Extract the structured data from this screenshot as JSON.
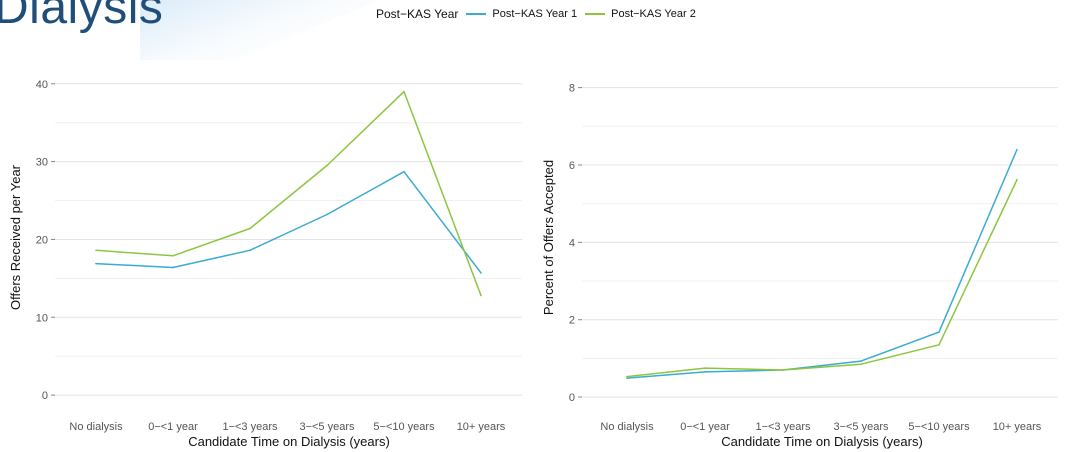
{
  "slide": {
    "title": "Dialysis"
  },
  "legend": {
    "title": "Post−KAS Year",
    "items": [
      {
        "name": "Post−KAS Year 1",
        "color": "#3aabd2"
      },
      {
        "name": "Post−KAS Year 2",
        "color": "#8cc63f"
      }
    ]
  },
  "chart_data": [
    {
      "type": "line",
      "categories": [
        "No dialysis",
        "0−<1 year",
        "1−<3 years",
        "3−<5 years",
        "5−<10 years",
        "10+ years"
      ],
      "xlabel": "Candidate Time on Dialysis (years)",
      "ylabel": "Offers Received per Year",
      "ylim": [
        -0.5,
        41
      ],
      "yticks": [
        0,
        10,
        20,
        30,
        40
      ],
      "grid": true,
      "series": [
        {
          "name": "Post−KAS Year 1",
          "color": "#3aabd2",
          "values": [
            16.9,
            16.4,
            18.6,
            23.2,
            28.7,
            15.7
          ]
        },
        {
          "name": "Post−KAS Year 2",
          "color": "#8cc63f",
          "values": [
            18.6,
            17.9,
            21.4,
            29.5,
            39.0,
            12.8
          ]
        }
      ]
    },
    {
      "type": "line",
      "categories": [
        "No dialysis",
        "0−<1 year",
        "1−<3 years",
        "3−<5 years",
        "5−<10 years",
        "10+ years"
      ],
      "xlabel": "Candidate Time on Dialysis (years)",
      "ylabel": "Percent of Offers Accepted",
      "ylim": [
        -0.05,
        8.3
      ],
      "yticks": [
        0,
        2,
        4,
        6,
        8
      ],
      "grid": true,
      "series": [
        {
          "name": "Post−KAS Year 1",
          "color": "#3aabd2",
          "values": [
            0.49,
            0.65,
            0.7,
            0.93,
            1.68,
            6.4
          ]
        },
        {
          "name": "Post−KAS Year 2",
          "color": "#8cc63f",
          "values": [
            0.53,
            0.75,
            0.7,
            0.85,
            1.35,
            5.62
          ]
        }
      ]
    }
  ]
}
